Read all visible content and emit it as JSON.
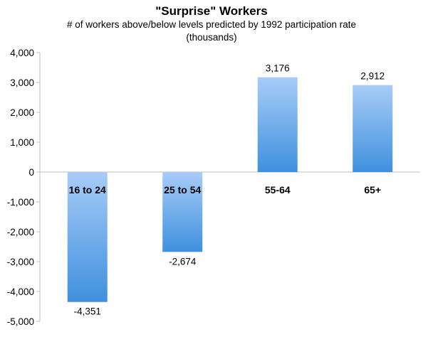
{
  "chart_data": {
    "type": "bar",
    "title": "\"Surprise\" Workers",
    "subtitle_lines": [
      "# of workers above/below levels predicted by 1992 participation rate",
      "(thousands)"
    ],
    "xlabel": "",
    "ylabel": "",
    "categories": [
      "16 to 24",
      "25 to 54",
      "55-64",
      "65+"
    ],
    "values": [
      -4351,
      -2674,
      3176,
      2912
    ],
    "data_labels": [
      "-4,351",
      "-2,674",
      "3,176",
      "2,912"
    ],
    "yticks": [
      4000,
      3000,
      2000,
      1000,
      0,
      -1000,
      -2000,
      -3000,
      -4000,
      -5000
    ],
    "ytick_labels": [
      "4,000",
      "3,000",
      "2,000",
      "1,000",
      "0",
      "-1,000",
      "-2,000",
      "-3,000",
      "-4,000",
      "-5,000"
    ],
    "ylim": [
      -5000,
      4000
    ],
    "grid": false,
    "legend": "none",
    "colors": {
      "bar_light": "#a8ccf7",
      "bar_dark": "#3f90de",
      "axis": "#bfbfbf"
    }
  }
}
